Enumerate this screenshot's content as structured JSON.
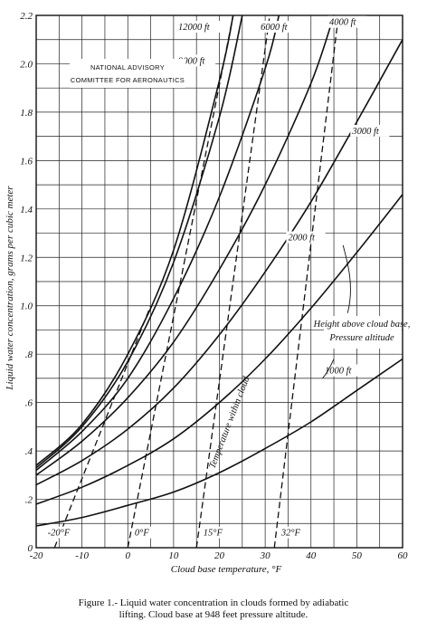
{
  "chart_data": {
    "type": "line",
    "title": "",
    "xlabel": "Cloud base temperature, °F",
    "ylabel": "Liquid water concentration, grams per cubic meter",
    "xlim": [
      -20,
      60
    ],
    "ylim": [
      0,
      2.2
    ],
    "x_ticks": [
      "-20",
      "-10",
      "0",
      "10",
      "20",
      "30",
      "40",
      "50",
      "60"
    ],
    "y_ticks": [
      "0",
      ".2",
      ".4",
      ".6",
      ".8",
      "1.0",
      "1.2",
      "1.4",
      "1.6",
      "1.8",
      "2.0",
      "2.2"
    ],
    "x_tick_values": [
      -20,
      -10,
      0,
      10,
      20,
      30,
      40,
      50,
      60
    ],
    "y_tick_values": [
      0,
      0.2,
      0.4,
      0.6,
      0.8,
      1.0,
      1.2,
      1.4,
      1.6,
      1.8,
      2.0,
      2.2
    ],
    "grid": true,
    "annotation_box": [
      "NATIONAL ADVISORY",
      "COMMITTEE FOR AERONAUTICS"
    ],
    "series": [
      {
        "label": "1000 ft",
        "x": [
          -20,
          -10,
          0,
          10,
          20,
          30,
          40,
          50,
          60
        ],
        "y": [
          0.09,
          0.125,
          0.175,
          0.23,
          0.31,
          0.41,
          0.52,
          0.65,
          0.78
        ]
      },
      {
        "label": "2000 ft",
        "x": [
          -20,
          -10,
          0,
          10,
          20,
          30,
          40,
          50,
          60
        ],
        "y": [
          0.18,
          0.25,
          0.34,
          0.45,
          0.6,
          0.78,
          0.99,
          1.22,
          1.46
        ]
      },
      {
        "label": "3000 ft",
        "x": [
          -20,
          -10,
          0,
          10,
          20,
          30,
          40,
          50,
          60
        ],
        "y": [
          0.26,
          0.36,
          0.49,
          0.66,
          0.88,
          1.14,
          1.43,
          1.76,
          2.1
        ]
      },
      {
        "label": "4000 ft",
        "x": [
          -20,
          -10,
          0,
          10,
          20,
          30,
          40,
          45
        ],
        "y": [
          0.3,
          0.44,
          0.62,
          0.85,
          1.15,
          1.5,
          1.92,
          2.2
        ]
      },
      {
        "label": "6000 ft",
        "x": [
          -20,
          -10,
          0,
          10,
          20,
          30,
          33
        ],
        "y": [
          0.32,
          0.48,
          0.7,
          1.03,
          1.45,
          1.98,
          2.2
        ]
      },
      {
        "label": "9000 ft",
        "x": [
          -20,
          -10,
          0,
          10,
          20,
          25
        ],
        "y": [
          0.33,
          0.5,
          0.77,
          1.18,
          1.78,
          2.2
        ]
      },
      {
        "label": "12000 ft",
        "x": [
          -20,
          -10,
          0,
          10,
          20,
          23
        ],
        "y": [
          0.34,
          0.51,
          0.8,
          1.23,
          1.93,
          2.2
        ]
      }
    ],
    "temperature_lines": [
      {
        "label": "-20°F",
        "x": [
          -16,
          5
        ],
        "y": [
          0,
          1.0
        ]
      },
      {
        "label": "0°F",
        "x": [
          0,
          23
        ],
        "y": [
          0,
          2.2
        ]
      },
      {
        "label": "15°F",
        "x": [
          15,
          31
        ],
        "y": [
          0,
          2.2
        ]
      },
      {
        "label": "32°F",
        "x": [
          32,
          46
        ],
        "y": [
          0,
          2.2
        ]
      }
    ],
    "annotations": [
      "Height above cloud base,",
      "Pressure altitude",
      "Temperature within cloud"
    ]
  },
  "caption": {
    "line1": "Figure 1.-  Liquid water concentration in clouds formed by adiabatic",
    "line2": "lifting.  Cloud base at 948 feet pressure altitude."
  }
}
